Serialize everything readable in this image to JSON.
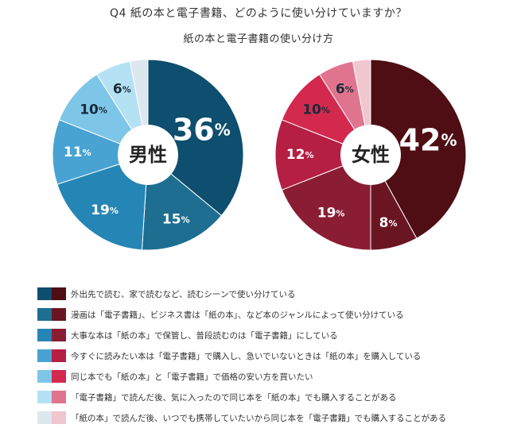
{
  "title": "Q4 紙の本と電子書籍、どのように使い分けていますか？",
  "subtitle": "紙の本と電子書籍の使い分け方",
  "chart_data": [
    {
      "type": "pie",
      "center_label": "男性",
      "values": [
        36,
        15,
        19,
        11,
        10,
        6,
        3
      ],
      "value_labels": [
        "36",
        "15",
        "19",
        "11",
        "10",
        "6",
        ""
      ],
      "unit": "%",
      "colors": [
        "#0e4e6e",
        "#1e6e92",
        "#2586b5",
        "#48a3d2",
        "#7ec6e8",
        "#b5e1f4",
        "#dde8ee"
      ]
    },
    {
      "type": "pie",
      "center_label": "女性",
      "values": [
        42,
        8,
        19,
        12,
        10,
        6,
        3
      ],
      "value_labels": [
        "42",
        "8",
        "19",
        "12",
        "10",
        "6",
        ""
      ],
      "unit": "%",
      "colors": [
        "#4e0e14",
        "#6a1622",
        "#8a1d33",
        "#b51f43",
        "#d3294f",
        "#e0748f",
        "#f0c6cf"
      ]
    }
  ],
  "legend": [
    "外出先で読む、家で読むなど、読むシーンで使い分けている",
    "漫画は「電子書籍」、ビジネス書は「紙の本」、など本のジャンルによって使い分けている",
    "大事な本は「紙の本」で保管し、普段読むのは「電子書籍」にしている",
    "今すぐに読みたい本は「電子書籍」で購入し、急いでいないときは「紙の本」を購入している",
    "同じ本でも「紙の本」と「電子書籍」で価格の安い方を買いたい",
    "「電子書籍」で読んだ後、気に入ったので同じ本を「紙の本」でも購入することがある",
    "「紙の本」で読んだ後、いつでも携帯していたいから同じ本を「電子書籍」でも購入することがある"
  ]
}
